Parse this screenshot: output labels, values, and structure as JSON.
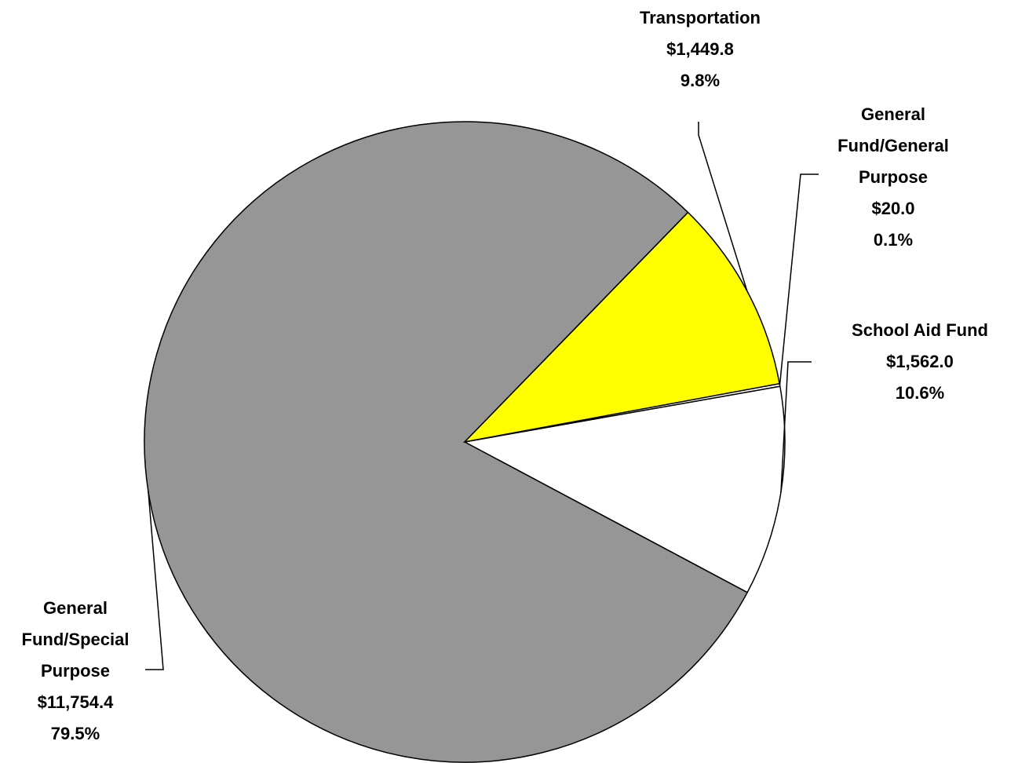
{
  "chart_data": {
    "type": "pie",
    "start_angle_deg": -10,
    "direction": "clockwise",
    "slices": [
      {
        "name_lines": [
          "School Aid Fund"
        ],
        "value_label": "$1,562.0",
        "percent_label": "10.6%",
        "value": 1562.0,
        "percent": 10.6,
        "color": "#FFFFFF"
      },
      {
        "name_lines": [
          "General",
          "Fund/Special",
          "Purpose"
        ],
        "value_label": "$11,754.4",
        "percent_label": "79.5%",
        "value": 11754.4,
        "percent": 79.5,
        "color": "#969696"
      },
      {
        "name_lines": [
          "Transportation"
        ],
        "value_label": "$1,449.8",
        "percent_label": "9.8%",
        "value": 1449.8,
        "percent": 9.8,
        "color": "#FFFF00"
      },
      {
        "name_lines": [
          "General",
          "Fund/General",
          "Purpose"
        ],
        "value_label": "$20.0",
        "percent_label": "0.1%",
        "value": 20.0,
        "percent": 0.1,
        "color": "#FFFFFF"
      }
    ]
  }
}
